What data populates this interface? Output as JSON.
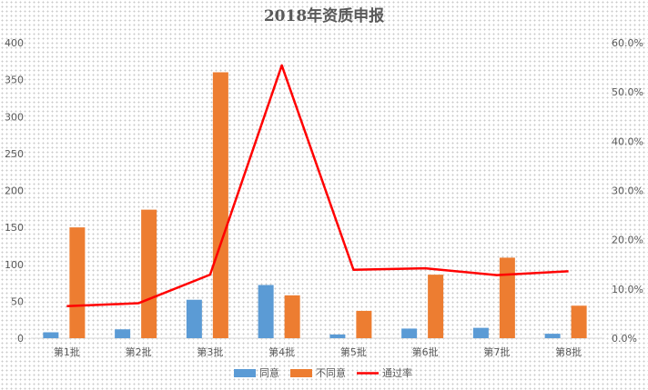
{
  "chart_data": {
    "type": "bar",
    "title": "2018年资质申报",
    "categories": [
      "第1批",
      "第2批",
      "第3批",
      "第4批",
      "第5批",
      "第6批",
      "第7批",
      "第8批"
    ],
    "series": [
      {
        "name": "同意",
        "type": "bar",
        "axis": "left",
        "color": "#5b9bd5",
        "values": [
          8,
          12,
          52,
          72,
          5,
          13,
          14,
          6
        ]
      },
      {
        "name": "不同意",
        "type": "bar",
        "axis": "left",
        "color": "#ed7d31",
        "values": [
          150,
          174,
          360,
          58,
          37,
          86,
          109,
          44
        ]
      },
      {
        "name": "通过率",
        "type": "line",
        "axis": "right",
        "color": "#ff0000",
        "values": [
          0.065,
          0.071,
          0.129,
          0.554,
          0.139,
          0.142,
          0.128,
          0.136
        ]
      }
    ],
    "left_axis": {
      "min": 0,
      "max": 400,
      "step": 50,
      "ticks": [
        "0",
        "50",
        "100",
        "150",
        "200",
        "250",
        "300",
        "350",
        "400"
      ]
    },
    "right_axis": {
      "min": 0,
      "max": 0.6,
      "step": 0.1,
      "ticks": [
        "0.0%",
        "10.0%",
        "20.0%",
        "30.0%",
        "40.0%",
        "50.0%",
        "60.0%"
      ]
    },
    "legend_position": "bottom",
    "grid": false
  }
}
